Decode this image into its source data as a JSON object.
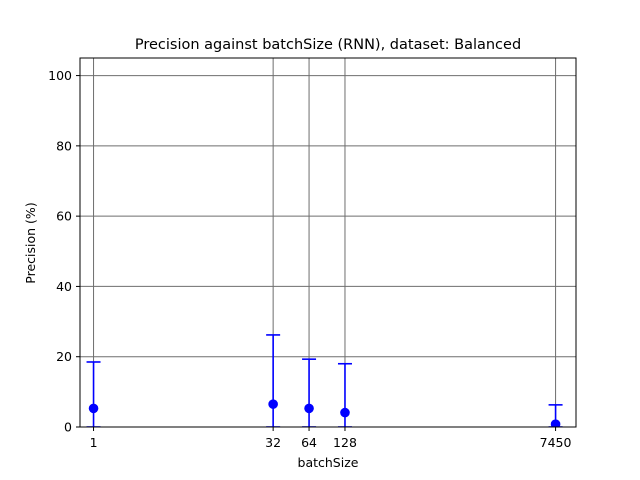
{
  "chart_data": {
    "type": "scatter",
    "title": "Precision against batchSize (RNN), dataset: Balanced",
    "xlabel": "batchSize",
    "ylabel": "Precision (%)",
    "x_scale": "log",
    "xlim": [
      0.77,
      11050
    ],
    "ylim": [
      0,
      105
    ],
    "grid": true,
    "x_ticks": [
      1,
      32,
      64,
      128,
      7450
    ],
    "x_tick_labels": [
      "1",
      "32",
      "64",
      "128",
      "7450"
    ],
    "y_ticks": [
      0,
      20,
      40,
      60,
      80,
      100
    ],
    "y_tick_labels": [
      "0",
      "20",
      "40",
      "60",
      "80",
      "100"
    ],
    "series": [
      {
        "color": "#0000ff",
        "points": [
          {
            "x": 1,
            "y": 5.3,
            "err_low": 5.3,
            "err_high": 13.2
          },
          {
            "x": 32,
            "y": 6.5,
            "err_low": 6.5,
            "err_high": 19.7
          },
          {
            "x": 64,
            "y": 5.3,
            "err_low": 5.3,
            "err_high": 14.0
          },
          {
            "x": 128,
            "y": 4.1,
            "err_low": 4.1,
            "err_high": 13.9
          },
          {
            "x": 7450,
            "y": 0.8,
            "err_low": 0.8,
            "err_high": 5.5
          }
        ]
      }
    ]
  }
}
